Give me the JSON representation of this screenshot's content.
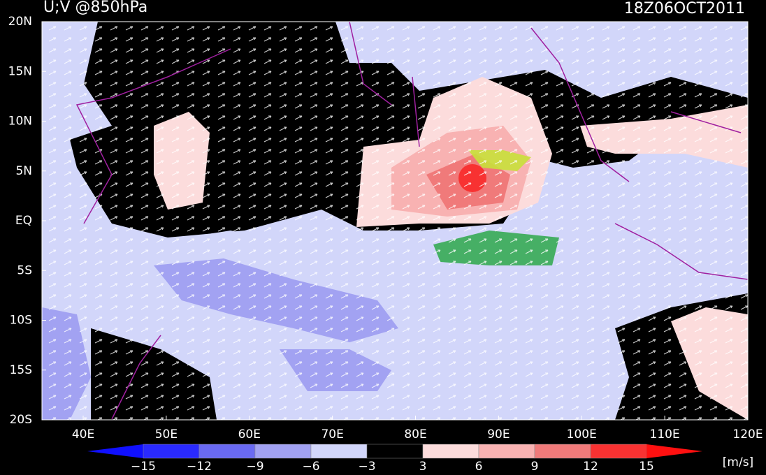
{
  "title": "U;V @850hPa",
  "timestamp": "18Z06OCT2011",
  "lat_labels": [
    "20N",
    "15N",
    "10N",
    "5N",
    "EQ",
    "5S",
    "10S",
    "15S",
    "20S"
  ],
  "lon_labels": [
    "40E",
    "50E",
    "60E",
    "70E",
    "80E",
    "90E",
    "100E",
    "110E",
    "120E"
  ],
  "colorbar": {
    "labels": [
      "−15",
      "−12",
      "−9",
      "−6",
      "−3",
      "3",
      "6",
      "9",
      "12",
      "15"
    ],
    "colors": [
      "#2a2aff",
      "#6a6af2",
      "#a2a2f2",
      "#d2d6fa",
      "#000000",
      "#fcdcdc",
      "#f8b2b2",
      "#f07a7a",
      "#f83232"
    ],
    "low_color": "#1010ff",
    "high_color": "#ff1010",
    "unit": "[m/s]"
  }
}
